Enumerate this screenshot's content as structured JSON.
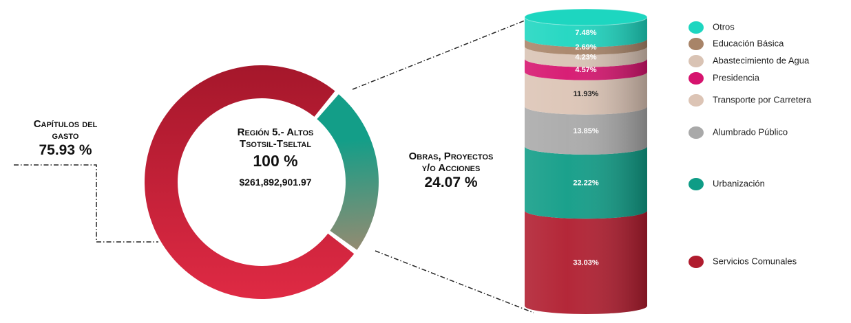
{
  "chart_data": [
    {
      "type": "pie",
      "title": "Región 5.- Altos Tsotsil-Tseltal",
      "annotations": [
        "100 %",
        "$261,892,901.97"
      ],
      "categories": [
        "Capítulos del gasto",
        "Obras, Proyectos y/o Acciones"
      ],
      "values": [
        75.93,
        24.07
      ],
      "value_labels": [
        "75.93 %",
        "24.07 %"
      ],
      "colors": [
        "#c81f36",
        "#139e88"
      ]
    },
    {
      "type": "stacked_bar",
      "series": [
        {
          "name": "Servicios Comunales",
          "color": "#b01c2e",
          "values": [
            33.03
          ],
          "value_labels": [
            "33.03%"
          ]
        },
        {
          "name": "Urbanización",
          "color": "#0f9c86",
          "values": [
            22.22
          ],
          "value_labels": [
            "22.22%"
          ]
        },
        {
          "name": "Alumbrado Público",
          "color": "#a9a9a9",
          "values": [
            13.85
          ],
          "value_labels": [
            "13.85%"
          ]
        },
        {
          "name": "Transporte por Carretera",
          "color": "#dcc4b5",
          "values": [
            11.93
          ],
          "value_labels": [
            "11.93%"
          ]
        },
        {
          "name": "Presidencia",
          "color": "#d6136e",
          "values": [
            4.57
          ],
          "value_labels": [
            "4.57%"
          ]
        },
        {
          "name": "Abastecimiento de Agua",
          "color": "#d9c3b4",
          "values": [
            4.23
          ],
          "value_labels": [
            "4.23%"
          ]
        },
        {
          "name": "Educación Básica",
          "color": "#a88468",
          "values": [
            2.69
          ],
          "value_labels": [
            "2.69%"
          ]
        },
        {
          "name": "Otros",
          "color": "#1dd6c0",
          "values": [
            7.48
          ],
          "value_labels": [
            "7.48%"
          ]
        }
      ],
      "ylim": [
        0,
        100
      ]
    }
  ]
}
